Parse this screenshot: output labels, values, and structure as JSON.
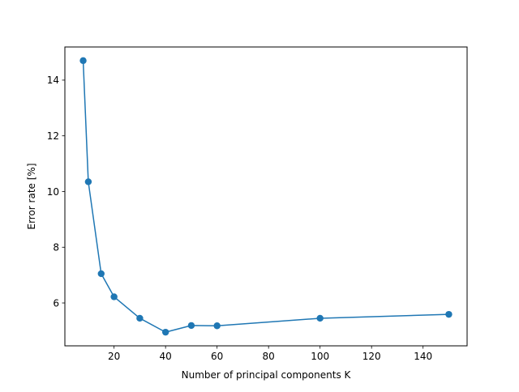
{
  "chart_data": {
    "type": "line",
    "title": "",
    "xlabel": "Number of principal components K",
    "ylabel": "Error rate [%]",
    "xlim": [
      0.9,
      157.1
    ],
    "ylim": [
      4.46,
      15.19
    ],
    "xticks": [
      20,
      40,
      60,
      80,
      100,
      120,
      140
    ],
    "yticks": [
      6,
      8,
      10,
      12,
      14
    ],
    "grid": false,
    "legend": "none",
    "color": "#1f77b4",
    "marker": "circle",
    "series": [
      {
        "x": [
          8,
          10,
          15,
          20,
          30,
          40,
          50,
          60,
          100,
          150
        ],
        "y": [
          14.7,
          10.35,
          7.05,
          6.22,
          5.45,
          4.95,
          5.19,
          5.18,
          5.45,
          5.59
        ]
      }
    ]
  }
}
